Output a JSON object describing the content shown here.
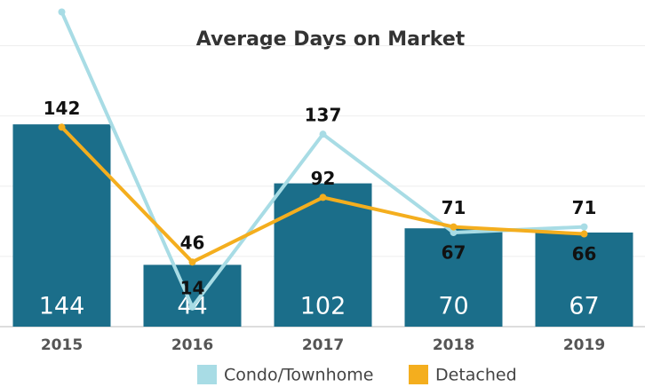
{
  "chart_data": {
    "type": "bar",
    "title": "Average Days on Market",
    "categories": [
      "2015",
      "2016",
      "2017",
      "2018",
      "2019"
    ],
    "values": [
      144,
      44,
      102,
      70,
      67
    ],
    "color": "#1b6e8a",
    "series": [
      {
        "name": "Condo/Townhome",
        "color": "#a8dce5",
        "values": [
          224,
          14,
          137,
          67,
          71
        ]
      },
      {
        "name": "Detached",
        "color": "#f4ae1e",
        "values": [
          142,
          46,
          92,
          71,
          66
        ]
      }
    ],
    "ylim": [
      0,
      230
    ],
    "yticks": [
      0,
      50,
      100,
      150,
      200
    ],
    "grid": true
  }
}
